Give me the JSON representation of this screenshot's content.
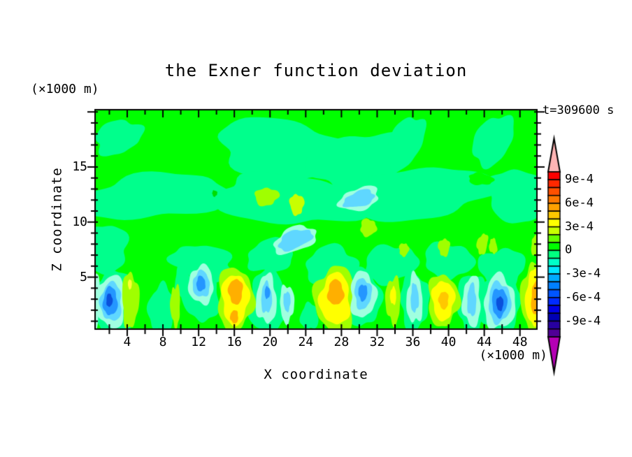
{
  "chart_data": {
    "type": "contour",
    "title": "the Exner function deviation",
    "time_label": "t=309600 s",
    "x": {
      "title": "X coordinate",
      "unit": "(×1000 m)",
      "range": [
        0.4,
        49.9
      ],
      "ticks": [
        4,
        8,
        12,
        16,
        20,
        24,
        28,
        32,
        36,
        40,
        44,
        48
      ],
      "minor_step": 2
    },
    "z": {
      "title": "Z coordinate",
      "unit": "(×1000 m)",
      "range": [
        0.28,
        20.2
      ],
      "ticks": [
        5,
        10,
        15
      ],
      "minor_step": 1
    },
    "contour_interval": "1e-4",
    "colorbar": {
      "top_value_e4": 10,
      "bottom_value_e4": -11,
      "n_segments": 21,
      "segment_colors": [
        "#FF0000",
        "#FF2800",
        "#FF5000",
        "#FF7800",
        "#FFA000",
        "#FFC800",
        "#FFFF00",
        "#C8FF00",
        "#64FF00",
        "#00FF00",
        "#00FF80",
        "#00FFC8",
        "#00E6FF",
        "#00AAFF",
        "#0080FF",
        "#0055FF",
        "#002BFF",
        "#0000E6",
        "#0000B4",
        "#2800A0",
        "#500096"
      ],
      "arrow_top_color": "#FFB4B4",
      "arrow_bottom_color": "#B400B4",
      "labels": [
        {
          "text": "9e-4",
          "v": 9
        },
        {
          "text": "6e-4",
          "v": 6
        },
        {
          "text": "3e-4",
          "v": 3
        },
        {
          "text": "0",
          "v": 0
        },
        {
          "text": "-3e-4",
          "v": -3
        },
        {
          "text": "-6e-4",
          "v": -6
        },
        {
          "text": "-9e-4",
          "v": -9
        }
      ]
    },
    "features": [
      {
        "x": 2,
        "z": 3,
        "sign": "negative",
        "peak_level": "-6e-4"
      },
      {
        "x": 4.5,
        "z": 3,
        "sign": "positive",
        "peak_level": "+2e-4"
      },
      {
        "x": 12,
        "z": 4.5,
        "sign": "negative",
        "peak_level": "-4e-4"
      },
      {
        "x": 16,
        "z": 3,
        "sign": "positive",
        "peak_level": "+4e-4"
      },
      {
        "x": 19.5,
        "z": 3,
        "sign": "negative",
        "peak_level": "-4e-4"
      },
      {
        "x": 27,
        "z": 3,
        "sign": "positive",
        "peak_level": "+4e-4"
      },
      {
        "x": 30.5,
        "z": 3.5,
        "sign": "negative",
        "peak_level": "-4e-4"
      },
      {
        "x": 34,
        "z": 3,
        "sign": "positive",
        "peak_level": "+3e-4"
      },
      {
        "x": 36,
        "z": 3,
        "sign": "negative",
        "peak_level": "-3e-4"
      },
      {
        "x": 39.5,
        "z": 3,
        "sign": "positive",
        "peak_level": "+4e-4"
      },
      {
        "x": 42.5,
        "z": 3,
        "sign": "negative",
        "peak_level": "-3e-4"
      },
      {
        "x": 45.7,
        "z": 2.7,
        "sign": "negative",
        "peak_level": "-6e-4"
      },
      {
        "x": 49.5,
        "z": 3,
        "sign": "positive",
        "peak_level": "+4e-4"
      },
      {
        "x": 25,
        "z": 12,
        "sign": "negative",
        "peak_level": "-1e-4",
        "note": "weak negative layer z≈10-14"
      },
      {
        "x": 25,
        "z": 17.5,
        "sign": "negative",
        "peak_level": "-1e-4",
        "note": "weak negative patches near top"
      }
    ],
    "field": {
      "background": "#00FF00",
      "blobs": [
        [
          3.0,
          17.7,
          2.7,
          1.5,
          -20,
          1,
          1,
          "#00FF8C"
        ],
        [
          21.5,
          16.6,
          7.5,
          2.7,
          8,
          2,
          0.9,
          "#00FF8C"
        ],
        [
          30,
          15.6,
          6,
          2.4,
          -10,
          3,
          0.9,
          "#00FF8C"
        ],
        [
          35.2,
          17.2,
          1.8,
          2.6,
          25,
          4,
          0.8,
          "#00FF8C"
        ],
        [
          45,
          17.4,
          2.0,
          2.5,
          30,
          5,
          0.8,
          "#00FF8C"
        ],
        [
          7,
          12.3,
          8.5,
          2.0,
          -5,
          6,
          1,
          "#00FF8C"
        ],
        [
          22,
          12.0,
          8.5,
          2.2,
          4,
          7,
          1,
          "#00FF8C"
        ],
        [
          37,
          12.6,
          8.2,
          2.3,
          -7,
          8,
          1,
          "#00FF8C"
        ],
        [
          47.8,
          12.4,
          3.5,
          2.4,
          5,
          9,
          0.9,
          "#00FF8C"
        ],
        [
          1.5,
          7.6,
          2.6,
          2.2,
          0,
          10,
          1,
          "#00FF8C"
        ],
        [
          12.5,
          6.3,
          3.5,
          1.6,
          12,
          11,
          1.1,
          "#00FF8C"
        ],
        [
          20,
          6.9,
          2.5,
          1.5,
          -8,
          12,
          1.1,
          "#00FF8C"
        ],
        [
          27,
          6.0,
          3.0,
          1.8,
          5,
          13,
          1.1,
          "#00FF8C"
        ],
        [
          33.5,
          6.2,
          3.0,
          1.7,
          -10,
          14,
          1,
          "#00FF8C"
        ],
        [
          40,
          6.5,
          2.8,
          1.6,
          8,
          15,
          1,
          "#00FF8C"
        ],
        [
          46,
          5.9,
          2.6,
          1.7,
          -5,
          16,
          1,
          "#00FF8C"
        ],
        [
          2.3,
          2.7,
          2.6,
          2.9,
          0,
          17,
          1,
          "#00FF8C"
        ],
        [
          12.3,
          3.6,
          2.0,
          2.7,
          0,
          18,
          1,
          "#00FF8C"
        ],
        [
          19.8,
          2.8,
          2.2,
          2.8,
          0,
          19,
          1,
          "#00FF8C"
        ],
        [
          30.4,
          3.1,
          2.0,
          2.6,
          0,
          20,
          1,
          "#00FF8C"
        ],
        [
          36.2,
          2.8,
          1.6,
          2.6,
          0,
          21,
          1,
          "#00FF8C"
        ],
        [
          42.6,
          2.6,
          1.6,
          2.8,
          0,
          22,
          1,
          "#00FF8C"
        ],
        [
          45.7,
          2.6,
          2.4,
          2.8,
          0,
          23,
          1,
          "#00FF8C"
        ],
        [
          7.8,
          2.1,
          1.4,
          2.2,
          0,
          24,
          1.2,
          "#00FF8C"
        ],
        [
          24.4,
          1.4,
          1.0,
          1.2,
          0,
          25,
          1,
          "#00FF8C"
        ],
        [
          10.2,
          4.6,
          0.9,
          1.4,
          0,
          26,
          1,
          "#00FF8C"
        ],
        [
          19.6,
          12.3,
          1.35,
          0.8,
          -10,
          27,
          1,
          "#A0FF00"
        ],
        [
          23,
          11.6,
          0.8,
          0.95,
          0,
          28,
          1,
          "#C8FF00"
        ],
        [
          30,
          12.1,
          2.3,
          1.0,
          -18,
          29,
          1,
          "#A0FFE0"
        ],
        [
          30,
          12.1,
          1.8,
          0.7,
          -18,
          30,
          1,
          "#5FD7FF"
        ],
        [
          22.8,
          8.4,
          2.5,
          1.1,
          -22,
          31,
          1,
          "#A0FFE0"
        ],
        [
          22.8,
          8.4,
          2.0,
          0.8,
          -22,
          32,
          1,
          "#5FD7FF"
        ],
        [
          31,
          9.5,
          0.9,
          0.8,
          0,
          33,
          1,
          "#A0FF00"
        ],
        [
          35,
          7.5,
          0.55,
          0.6,
          0,
          34,
          1,
          "#A0FF00"
        ],
        [
          39.5,
          7.7,
          0.65,
          0.8,
          0,
          35,
          1,
          "#A0FF00"
        ],
        [
          43.8,
          8.0,
          0.6,
          0.95,
          10,
          36,
          1,
          "#A0FF00"
        ],
        [
          45,
          7.8,
          0.45,
          0.7,
          -5,
          37,
          1,
          "#A0FF00"
        ],
        [
          49.7,
          7.8,
          0.45,
          0.9,
          0,
          38,
          1,
          "#A0FF00"
        ],
        [
          43.6,
          13.9,
          1.4,
          0.55,
          5,
          39,
          1,
          "#00FF00"
        ],
        [
          13.8,
          12.6,
          0.28,
          0.28,
          0,
          40,
          1,
          "#00DC00"
        ],
        [
          0.45,
          3.0,
          0.5,
          2.5,
          0,
          41,
          0.8,
          "#A0FFE0"
        ],
        [
          2.2,
          2.8,
          1.75,
          2.35,
          0,
          42,
          0.9,
          "#A0FFE0"
        ],
        [
          2.2,
          2.75,
          1.2,
          1.75,
          0,
          43,
          0.9,
          "#5FD7FF"
        ],
        [
          2.1,
          2.8,
          0.8,
          1.3,
          0,
          44,
          0.8,
          "#2496FF"
        ],
        [
          2.0,
          2.9,
          0.35,
          0.6,
          0,
          45,
          0.7,
          "#0A50DC"
        ],
        [
          4.35,
          2.9,
          0.95,
          2.5,
          0,
          46,
          1,
          "#A0FF00"
        ],
        [
          4.3,
          4.35,
          0.22,
          0.45,
          0,
          47,
          0.5,
          "#FFFF32"
        ],
        [
          9.4,
          2.4,
          0.55,
          1.9,
          0,
          48,
          1.2,
          "#A0FF00"
        ],
        [
          12.3,
          4.3,
          1.4,
          1.75,
          0,
          49,
          0.9,
          "#A0FFE0"
        ],
        [
          12.3,
          4.35,
          0.95,
          1.2,
          0,
          50,
          0.8,
          "#5FD7FF"
        ],
        [
          12.25,
          4.4,
          0.5,
          0.7,
          0,
          51,
          0.7,
          "#2496FF"
        ],
        [
          16.1,
          3.0,
          2.0,
          2.9,
          0,
          52,
          1,
          "#A0FF00"
        ],
        [
          16.1,
          3.0,
          1.5,
          2.3,
          0,
          53,
          0.9,
          "#FFFF00"
        ],
        [
          16.15,
          3.7,
          0.8,
          1.15,
          0,
          54,
          0.8,
          "#FFAF00"
        ],
        [
          16.0,
          1.4,
          0.45,
          0.6,
          0,
          55,
          0.7,
          "#FFAF00"
        ],
        [
          19.6,
          3.0,
          1.15,
          2.2,
          0,
          56,
          1,
          "#A0FFE0"
        ],
        [
          19.6,
          3.1,
          0.6,
          1.4,
          0,
          57,
          0.9,
          "#5FD7FF"
        ],
        [
          19.7,
          3.6,
          0.3,
          0.55,
          0,
          58,
          0.7,
          "#2496FF"
        ],
        [
          21.9,
          2.6,
          0.8,
          1.7,
          0,
          59,
          1,
          "#A0FFE0"
        ],
        [
          21.9,
          2.8,
          0.4,
          0.9,
          0,
          60,
          0.8,
          "#5FD7FF"
        ],
        [
          27.3,
          3.0,
          2.3,
          3.0,
          0,
          61,
          1,
          "#A0FF00"
        ],
        [
          27.3,
          3.0,
          1.7,
          2.35,
          0,
          62,
          0.9,
          "#FFFF00"
        ],
        [
          27.35,
          3.6,
          0.9,
          1.15,
          0,
          63,
          0.8,
          "#FFAF00"
        ],
        [
          30.4,
          3.4,
          1.45,
          2.1,
          0,
          64,
          1,
          "#A0FFE0"
        ],
        [
          30.4,
          3.5,
          0.95,
          1.4,
          0,
          65,
          0.9,
          "#5FD7FF"
        ],
        [
          30.4,
          3.6,
          0.5,
          0.75,
          0,
          66,
          0.8,
          "#2496FF"
        ],
        [
          33.8,
          2.9,
          0.85,
          2.1,
          0,
          67,
          1.1,
          "#A0FF00"
        ],
        [
          33.8,
          3.3,
          0.35,
          0.8,
          0,
          68,
          0.8,
          "#FFFF00"
        ],
        [
          36.2,
          3.0,
          0.9,
          2.2,
          0,
          69,
          1.1,
          "#A0FFE0"
        ],
        [
          36.2,
          3.1,
          0.45,
          1.3,
          0,
          70,
          0.9,
          "#5FD7FF"
        ],
        [
          39.4,
          2.9,
          1.75,
          2.35,
          0,
          71,
          1,
          "#A0FF00"
        ],
        [
          39.4,
          2.9,
          1.25,
          1.8,
          0,
          72,
          0.9,
          "#FFFF00"
        ],
        [
          39.45,
          2.9,
          0.55,
          0.8,
          0,
          73,
          0.8,
          "#FFC800"
        ],
        [
          42.6,
          2.8,
          1.0,
          2.3,
          0,
          74,
          1.1,
          "#A0FFE0"
        ],
        [
          42.6,
          2.9,
          0.5,
          1.5,
          0,
          75,
          0.9,
          "#5FD7FF"
        ],
        [
          45.7,
          2.7,
          1.75,
          2.45,
          0,
          76,
          1,
          "#A0FFE0"
        ],
        [
          45.7,
          2.7,
          1.25,
          1.85,
          0,
          77,
          0.9,
          "#5FD7FF"
        ],
        [
          45.7,
          2.7,
          0.85,
          1.3,
          0,
          78,
          0.8,
          "#2496FF"
        ],
        [
          45.75,
          2.6,
          0.4,
          0.65,
          0,
          79,
          0.7,
          "#0A50DC"
        ],
        [
          49.5,
          3.1,
          1.35,
          3.2,
          0,
          80,
          1,
          "#A0FF00"
        ],
        [
          49.6,
          3.1,
          0.95,
          2.6,
          0,
          81,
          0.9,
          "#FFFF00"
        ],
        [
          49.8,
          3.0,
          0.55,
          1.5,
          0,
          82,
          0.8,
          "#FFAF00"
        ]
      ]
    }
  }
}
